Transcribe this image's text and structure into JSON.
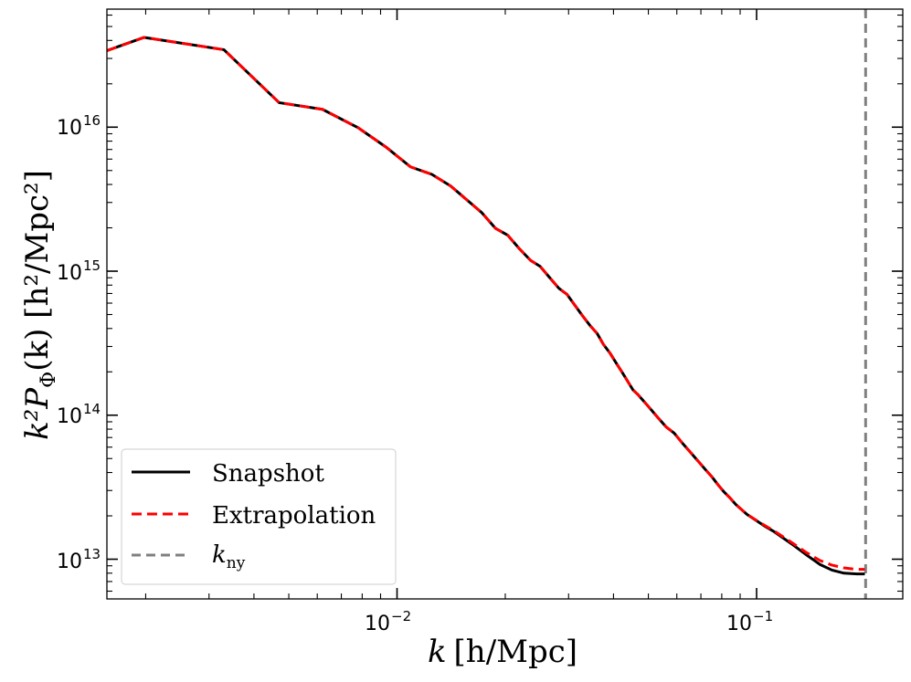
{
  "chart_data": {
    "type": "line",
    "xscale": "log",
    "yscale": "log",
    "xlim": [
      0.00156,
      0.255
    ],
    "ylim": [
      5300000000000.0,
      6.6e+16
    ],
    "xticks": [
      {
        "value": 0.01,
        "base": "10",
        "exp": "−2"
      },
      {
        "value": 0.1,
        "base": "10",
        "exp": "−1"
      }
    ],
    "yticks": [
      {
        "value": 10000000000000.0,
        "base": "10",
        "exp": "13"
      },
      {
        "value": 100000000000000.0,
        "base": "10",
        "exp": "14"
      },
      {
        "value": 1000000000000000.0,
        "base": "10",
        "exp": "15"
      },
      {
        "value": 1e+16,
        "base": "10",
        "exp": "16"
      }
    ],
    "xlabel": {
      "k": "k",
      "unit": "[h/Mpc]"
    },
    "ylabel": {
      "main": "k²P",
      "sub": "Φ",
      "args": "(k) [h²/Mpc²]"
    },
    "legend_position": "lower-left",
    "series": [
      {
        "name": "Snapshot",
        "color": "#000000",
        "dash": "solid",
        "x": [
          0.00156,
          0.00198,
          0.0033,
          0.0047,
          0.0062,
          0.0078,
          0.0093,
          0.0109,
          0.0125,
          0.0141,
          0.0157,
          0.0172,
          0.0188,
          0.0203,
          0.0219,
          0.0235,
          0.025,
          0.0266,
          0.0282,
          0.0297,
          0.0313,
          0.0328,
          0.0344,
          0.036,
          0.0375,
          0.0391,
          0.0407,
          0.0422,
          0.0438,
          0.0453,
          0.0469,
          0.05,
          0.053,
          0.056,
          0.059,
          0.0625,
          0.066,
          0.069,
          0.072,
          0.075,
          0.078,
          0.081,
          0.0845,
          0.0875,
          0.094,
          0.1,
          0.106,
          0.112,
          0.125,
          0.137,
          0.15,
          0.162,
          0.175,
          0.19,
          0.2
        ],
        "y": [
          3.4e+16,
          4.2e+16,
          3.45e+16,
          1.48e+16,
          1.33e+16,
          9900000000000000.0,
          7300000000000000.0,
          5300000000000000.0,
          4700000000000000.0,
          3900000000000000.0,
          3100000000000000.0,
          2550000000000000.0,
          1980000000000000.0,
          1780000000000000.0,
          1430000000000000.0,
          1190000000000000.0,
          1080000000000000.0,
          900000000000000.0,
          760000000000000.0,
          690000000000000.0,
          575000000000000.0,
          490000000000000.0,
          420000000000000.0,
          370000000000000.0,
          310000000000000.0,
          270000000000000.0,
          230000000000000.0,
          200000000000000.0,
          172000000000000.0,
          150000000000000.0,
          138000000000000.0,
          115000000000000.0,
          97000000000000.0,
          83000000000000.0,
          75000000000000.0,
          63000000000000.0,
          54000000000000.0,
          47500000000000.0,
          42000000000000.0,
          37500000000000.0,
          33000000000000.0,
          29500000000000.0,
          26500000000000.0,
          24000000000000.0,
          20500000000000.0,
          18500000000000.0,
          16800000000000.0,
          15500000000000.0,
          12800000000000.0,
          10800000000000.0,
          9200000000000.0,
          8400000000000.0,
          8000000000000.0,
          7900000000000.0,
          7900000000000.0
        ]
      },
      {
        "name": "Extrapolation",
        "color": "#ff0000",
        "dash": "dashed",
        "x": [
          0.00156,
          0.00198,
          0.0033,
          0.0047,
          0.0062,
          0.0078,
          0.0093,
          0.0109,
          0.0125,
          0.0141,
          0.0157,
          0.0172,
          0.0188,
          0.0203,
          0.0219,
          0.0235,
          0.025,
          0.0266,
          0.0282,
          0.0297,
          0.0313,
          0.0328,
          0.0344,
          0.036,
          0.0375,
          0.0391,
          0.0407,
          0.0422,
          0.0438,
          0.0453,
          0.0469,
          0.05,
          0.053,
          0.056,
          0.059,
          0.0625,
          0.066,
          0.069,
          0.072,
          0.075,
          0.078,
          0.081,
          0.0845,
          0.0875,
          0.094,
          0.1,
          0.106,
          0.112,
          0.125,
          0.137,
          0.15,
          0.162,
          0.175,
          0.19,
          0.2
        ],
        "y": [
          3.4e+16,
          4.2e+16,
          3.45e+16,
          1.48e+16,
          1.33e+16,
          9900000000000000.0,
          7300000000000000.0,
          5300000000000000.0,
          4700000000000000.0,
          3900000000000000.0,
          3100000000000000.0,
          2550000000000000.0,
          1980000000000000.0,
          1780000000000000.0,
          1430000000000000.0,
          1190000000000000.0,
          1080000000000000.0,
          900000000000000.0,
          760000000000000.0,
          690000000000000.0,
          575000000000000.0,
          490000000000000.0,
          420000000000000.0,
          370000000000000.0,
          310000000000000.0,
          270000000000000.0,
          230000000000000.0,
          200000000000000.0,
          172000000000000.0,
          150000000000000.0,
          138000000000000.0,
          115000000000000.0,
          97000000000000.0,
          83000000000000.0,
          75000000000000.0,
          63000000000000.0,
          54000000000000.0,
          47500000000000.0,
          42000000000000.0,
          37500000000000.0,
          33000000000000.0,
          29500000000000.0,
          26500000000000.0,
          24000000000000.0,
          20500000000000.0,
          18600000000000.0,
          17000000000000.0,
          15700000000000.0,
          13100000000000.0,
          11200000000000.0,
          9800000000000.0,
          9100000000000.0,
          8700000000000.0,
          8500000000000.0,
          8500000000000.0
        ]
      }
    ],
    "vlines": [
      {
        "name": "k_ny",
        "x": 0.201,
        "color": "#808080",
        "dash": "dashed"
      }
    ],
    "legend": [
      {
        "label": "Snapshot",
        "color": "#000000",
        "dash": "solid"
      },
      {
        "label": "Extrapolation",
        "color": "#ff0000",
        "dash": "dashed"
      },
      {
        "label": "k",
        "sub": "ny",
        "color": "#808080",
        "dash": "dashed"
      }
    ]
  }
}
